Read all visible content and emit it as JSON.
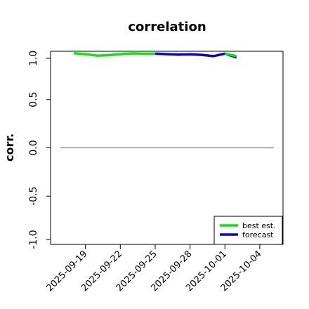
{
  "chart_data": {
    "type": "line",
    "title": "correlation",
    "xlabel": "",
    "ylabel": "corr.",
    "ylim": [
      -1.0,
      1.0
    ],
    "y_ticks": [
      "-1.0",
      "-0.5",
      "0.0",
      "0.5",
      "1.0"
    ],
    "x_range": [
      "2025-09-16",
      "2025-10-06"
    ],
    "x_ticks": [
      "2025-09-19",
      "2025-09-22",
      "2025-09-25",
      "2025-09-28",
      "2025-10-01",
      "2025-10-04"
    ],
    "x_tick_colors": [
      "#000000",
      "#000000",
      "#228B22",
      "#000000",
      "#000000",
      "#000000"
    ],
    "reference_line": {
      "y": 0.0,
      "color": "#808080"
    },
    "grid": false,
    "legend_position": "bottom-right",
    "series": [
      {
        "name": "best est.",
        "color": "#00ee00",
        "x": [
          "2025-09-18",
          "2025-09-19",
          "2025-09-20",
          "2025-09-21",
          "2025-09-22",
          "2025-09-23",
          "2025-09-24",
          "2025-09-25"
        ],
        "y": [
          0.98,
          0.97,
          0.955,
          0.96,
          0.97,
          0.978,
          0.975,
          0.975
        ]
      },
      {
        "name": "forecast",
        "color": "#0000ee",
        "x": [
          "2025-09-25",
          "2025-09-26",
          "2025-09-27",
          "2025-09-28",
          "2025-09-29",
          "2025-09-30",
          "2025-10-01",
          "2025-10-02"
        ],
        "y": [
          0.975,
          0.97,
          0.965,
          0.968,
          0.963,
          0.95,
          0.975,
          0.935
        ]
      },
      {
        "name": "",
        "color": "#00ee00",
        "x": [
          "2025-10-01",
          "2025-10-02"
        ],
        "y": [
          0.975,
          0.95
        ]
      }
    ]
  }
}
